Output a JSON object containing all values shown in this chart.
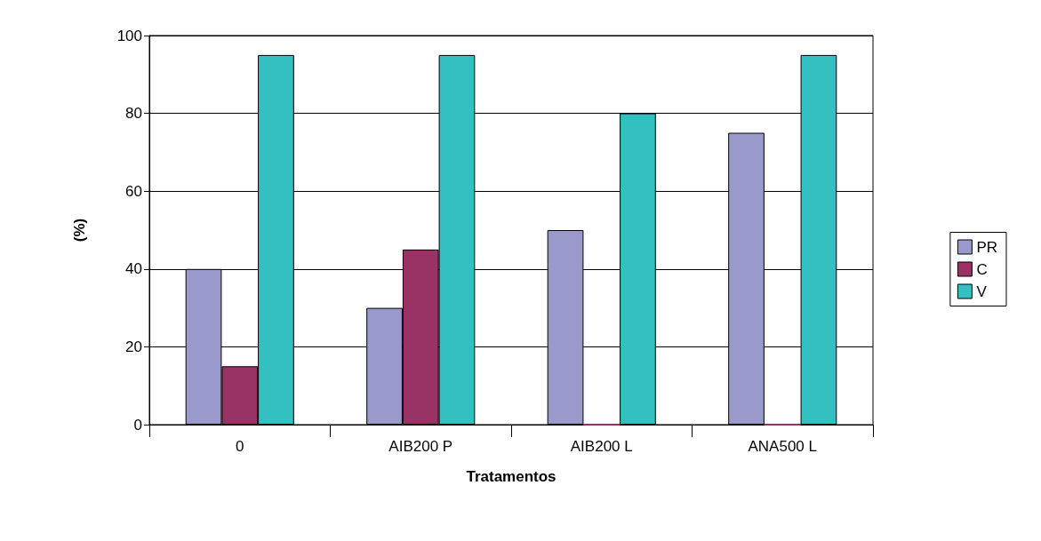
{
  "chart_data": {
    "type": "bar",
    "xlabel": "Tratamentos",
    "ylabel": "(%)",
    "categories": [
      "0",
      "AIB200 P",
      "AIB200 L",
      "ANA500 L"
    ],
    "series": [
      {
        "name": "PR",
        "color": "#9999cc",
        "values": [
          40,
          30,
          50,
          75
        ]
      },
      {
        "name": "C",
        "color": "#993366",
        "values": [
          15,
          45,
          0,
          0
        ]
      },
      {
        "name": "V",
        "color": "#33c0c0",
        "values": [
          95,
          95,
          80,
          95
        ]
      }
    ],
    "ylim": [
      0,
      100
    ],
    "yticks": [
      0,
      20,
      40,
      60,
      80,
      100
    ],
    "grid": "y",
    "legend": "right"
  }
}
